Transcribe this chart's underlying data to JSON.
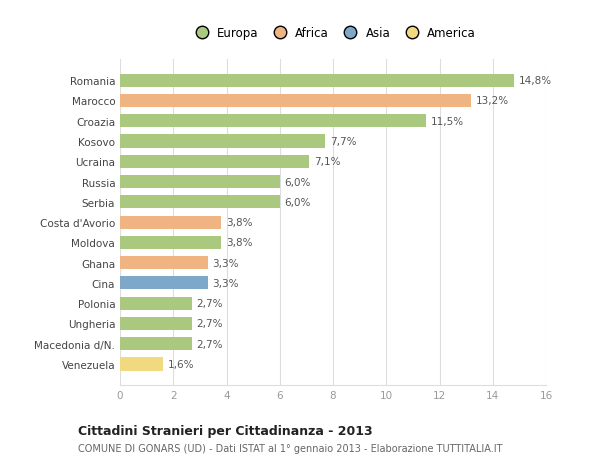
{
  "categories": [
    "Romania",
    "Marocco",
    "Croazia",
    "Kosovo",
    "Ucraina",
    "Russia",
    "Serbia",
    "Costa d'Avorio",
    "Moldova",
    "Ghana",
    "Cina",
    "Polonia",
    "Ungheria",
    "Macedonia d/N.",
    "Venezuela"
  ],
  "values": [
    14.8,
    13.2,
    11.5,
    7.7,
    7.1,
    6.0,
    6.0,
    3.8,
    3.8,
    3.3,
    3.3,
    2.7,
    2.7,
    2.7,
    1.6
  ],
  "labels": [
    "14,8%",
    "13,2%",
    "11,5%",
    "7,7%",
    "7,1%",
    "6,0%",
    "6,0%",
    "3,8%",
    "3,8%",
    "3,3%",
    "3,3%",
    "2,7%",
    "2,7%",
    "2,7%",
    "1,6%"
  ],
  "colors": [
    "#aac97e",
    "#f0b482",
    "#aac97e",
    "#aac97e",
    "#aac97e",
    "#aac97e",
    "#aac97e",
    "#f0b482",
    "#aac97e",
    "#f0b482",
    "#7ea8c9",
    "#aac97e",
    "#aac97e",
    "#aac97e",
    "#f0d97e"
  ],
  "legend": [
    {
      "label": "Europa",
      "color": "#aac97e"
    },
    {
      "label": "Africa",
      "color": "#f0b482"
    },
    {
      "label": "Asia",
      "color": "#7ea8c9"
    },
    {
      "label": "America",
      "color": "#f0d97e"
    }
  ],
  "title": "Cittadini Stranieri per Cittadinanza - 2013",
  "subtitle": "COMUNE DI GONARS (UD) - Dati ISTAT al 1° gennaio 2013 - Elaborazione TUTTITALIA.IT",
  "xlim": [
    0,
    16
  ],
  "xticks": [
    0,
    2,
    4,
    6,
    8,
    10,
    12,
    14,
    16
  ],
  "bg_color": "#ffffff",
  "grid_color": "#dddddd",
  "bar_height": 0.65
}
